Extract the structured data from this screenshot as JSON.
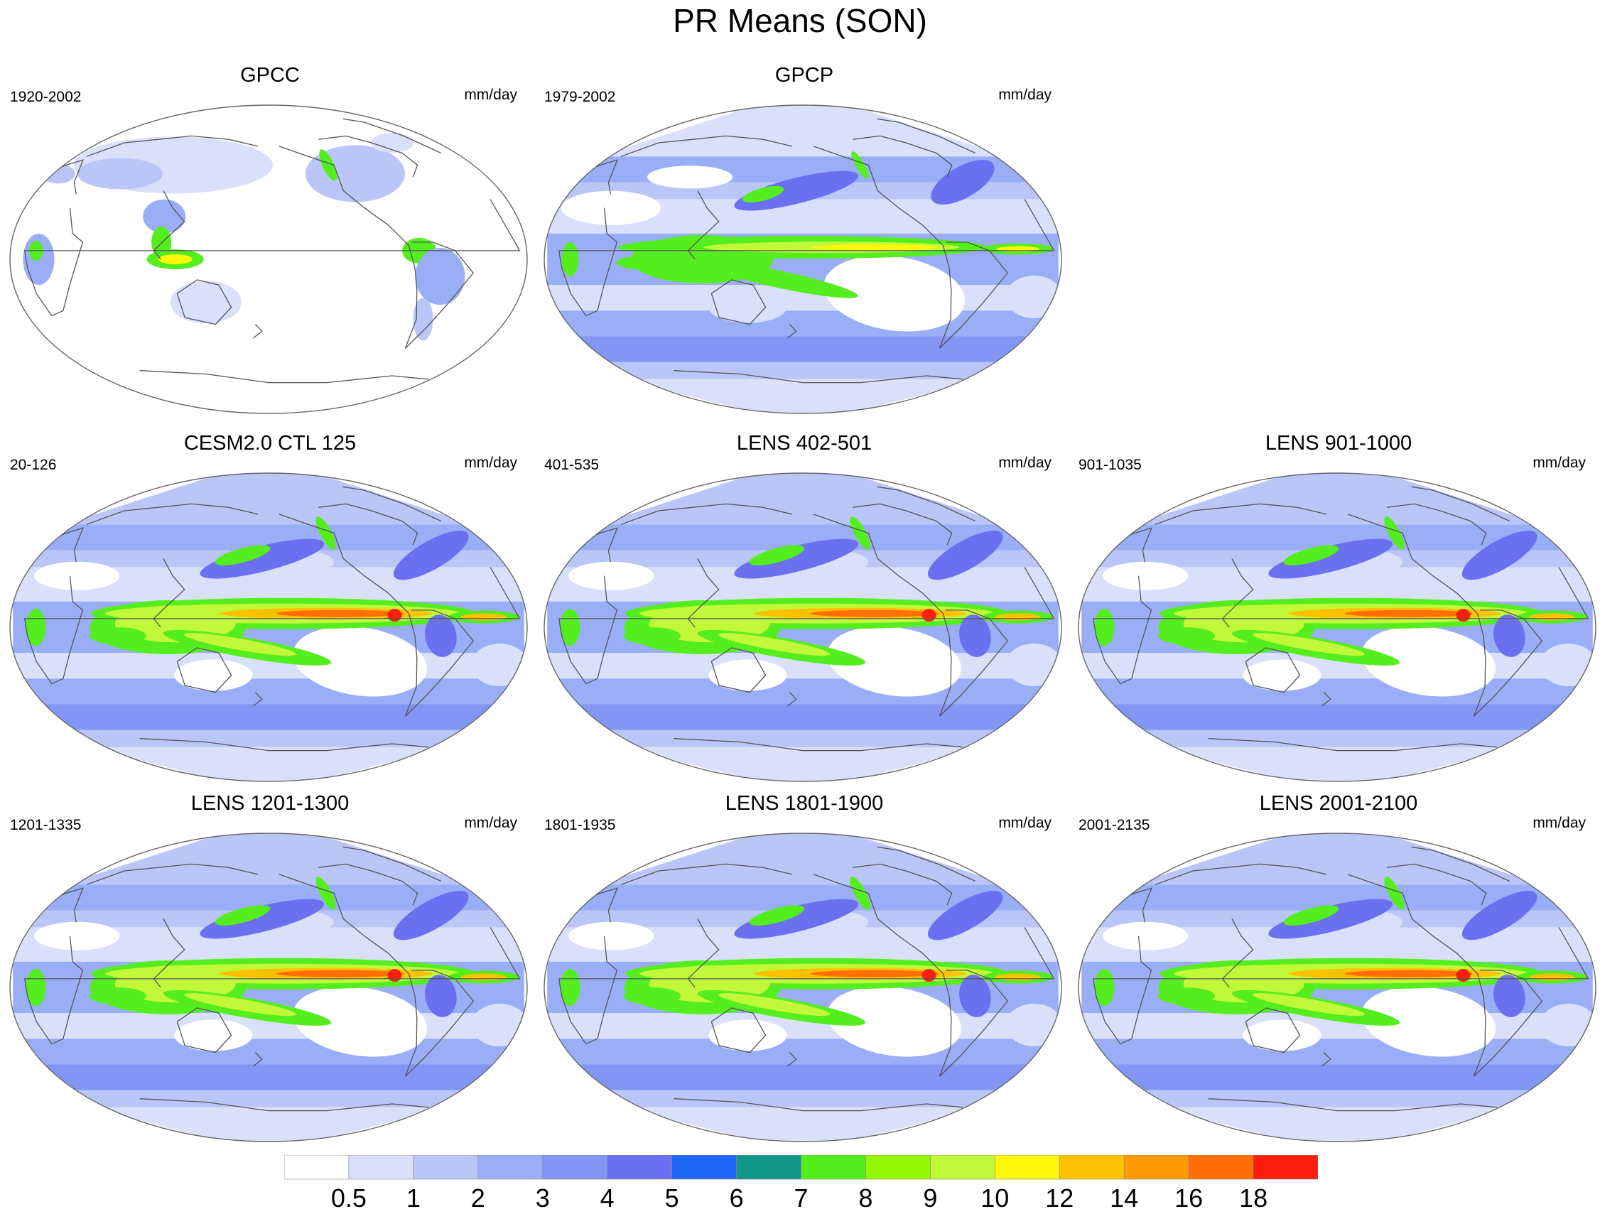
{
  "title": "PR Means (SON)",
  "panels": [
    {
      "title": "GPCC",
      "years": "1920-2002",
      "units": "mm/day",
      "type": "obs-land"
    },
    {
      "title": "GPCP",
      "years": "1979-2002",
      "units": "mm/day",
      "type": "obs"
    },
    {
      "title": "CESM2.0 CTL 125",
      "years": "20-126",
      "units": "mm/day",
      "type": "model"
    },
    {
      "title": "LENS 402-501",
      "years": "401-535",
      "units": "mm/day",
      "type": "model"
    },
    {
      "title": "LENS 901-1000",
      "years": "901-1035",
      "units": "mm/day",
      "type": "model"
    },
    {
      "title": "LENS 1201-1300",
      "years": "1201-1335",
      "units": "mm/day",
      "type": "model"
    },
    {
      "title": "LENS 1801-1900",
      "years": "1801-1935",
      "units": "mm/day",
      "type": "model"
    },
    {
      "title": "LENS 2001-2100",
      "years": "2001-2135",
      "units": "mm/day",
      "type": "model"
    }
  ],
  "colorbar": {
    "levels": [
      "0.5",
      "1",
      "2",
      "3",
      "4",
      "5",
      "6",
      "7",
      "8",
      "9",
      "10",
      "12",
      "14",
      "16",
      "18"
    ],
    "colors": [
      "#ffffff",
      "#d9e1fa",
      "#b9c6f7",
      "#9aaef7",
      "#8296f5",
      "#6a70f0",
      "#1f67f5",
      "#11968a",
      "#54ee1e",
      "#94f707",
      "#c1f83a",
      "#fdf80b",
      "#ffc103",
      "#ff9a07",
      "#ff6f06",
      "#fc1f0d"
    ]
  }
}
